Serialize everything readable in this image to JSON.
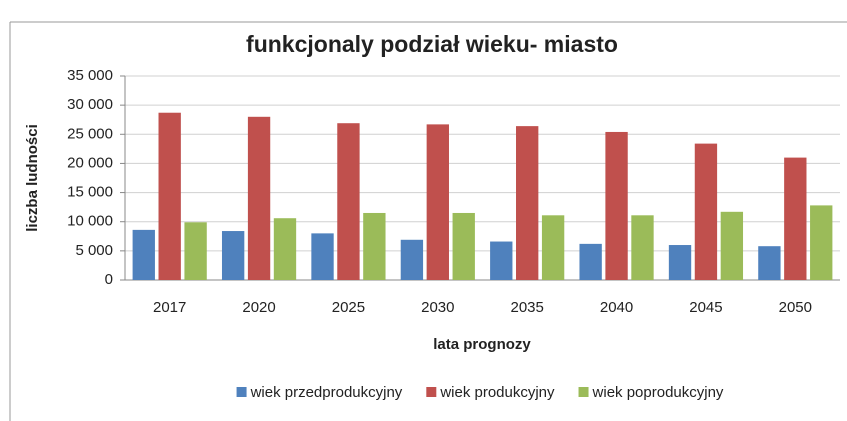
{
  "chart_data": {
    "type": "bar",
    "title": "funkcjonaly podział wieku- miasto",
    "y_label": "liczba ludności",
    "x_label": "lata prognozy",
    "categories": [
      "2017",
      "2020",
      "2025",
      "2030",
      "2035",
      "2040",
      "2045",
      "2050"
    ],
    "series": [
      {
        "name": "wiek przedprodukcyjny",
        "color": "#4f81bd",
        "values": [
          8600,
          8400,
          8000,
          6900,
          6600,
          6200,
          6000,
          5800
        ]
      },
      {
        "name": "wiek produkcyjny",
        "color": "#c0504d",
        "values": [
          28700,
          28000,
          26900,
          26700,
          26400,
          25400,
          23400,
          21000
        ]
      },
      {
        "name": "wiek poprodukcyjny",
        "color": "#9bbb59",
        "values": [
          9900,
          10600,
          11500,
          11500,
          11100,
          11100,
          11700,
          12800
        ]
      }
    ],
    "ylim": [
      0,
      35000
    ],
    "yticks": [
      0,
      {
        "value": 5000,
        "label": "5 000"
      },
      {
        "value": 10000,
        "label": "10 000"
      },
      {
        "value": 15000,
        "label": "15 000"
      },
      {
        "value": 20000,
        "label": "20 000"
      },
      {
        "value": 25000,
        "label": "25 000"
      },
      {
        "value": 30000,
        "label": "30 000"
      },
      {
        "value": 35000,
        "label": "35 000"
      }
    ],
    "grid": true,
    "legend": "bottom"
  }
}
